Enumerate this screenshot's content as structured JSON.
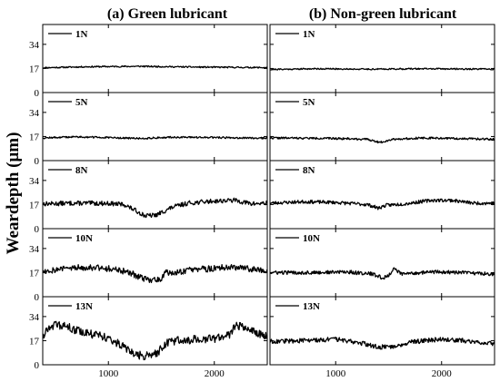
{
  "chart_data": {
    "type": "line",
    "ylabel": "Weardepth (μm)",
    "columns": [
      {
        "title": "(a) Green lubricant"
      },
      {
        "title": "(b) Non-green lubricant"
      }
    ],
    "xlim": [
      380,
      2500
    ],
    "ylim": [
      0,
      48
    ],
    "xticks": [
      1000,
      2000
    ],
    "yticks": [
      0,
      17,
      34
    ],
    "loads": [
      "1N",
      "5N",
      "8N",
      "10N",
      "13N"
    ],
    "series": [
      {
        "column": 0,
        "name": "1N",
        "noise": 0.5,
        "seed": 11,
        "points": [
          [
            380,
            17.5
          ],
          [
            800,
            18.2
          ],
          [
            1300,
            18.5
          ],
          [
            1800,
            18
          ],
          [
            2500,
            17.6
          ]
        ]
      },
      {
        "column": 0,
        "name": "5N",
        "noise": 0.6,
        "seed": 12,
        "points": [
          [
            380,
            16
          ],
          [
            700,
            16.8
          ],
          [
            1000,
            16.2
          ],
          [
            1300,
            15.6
          ],
          [
            1600,
            16.5
          ],
          [
            2000,
            16.3
          ],
          [
            2500,
            15.8
          ]
        ]
      },
      {
        "column": 0,
        "name": "8N",
        "noise": 1.6,
        "seed": 13,
        "points": [
          [
            380,
            17.5
          ],
          [
            700,
            18
          ],
          [
            1000,
            17.8
          ],
          [
            1150,
            17
          ],
          [
            1250,
            13
          ],
          [
            1350,
            9
          ],
          [
            1450,
            9.5
          ],
          [
            1600,
            15
          ],
          [
            1750,
            18
          ],
          [
            2000,
            19.5
          ],
          [
            2200,
            20
          ],
          [
            2350,
            17.5
          ],
          [
            2500,
            18
          ]
        ]
      },
      {
        "column": 0,
        "name": "10N",
        "noise": 2.3,
        "seed": 14,
        "points": [
          [
            380,
            18
          ],
          [
            600,
            20
          ],
          [
            800,
            21
          ],
          [
            1000,
            20
          ],
          [
            1200,
            17
          ],
          [
            1300,
            13.5
          ],
          [
            1400,
            11.5
          ],
          [
            1500,
            13
          ],
          [
            1550,
            18
          ],
          [
            1600,
            16
          ],
          [
            1700,
            18
          ],
          [
            1900,
            19.5
          ],
          [
            2100,
            20.5
          ],
          [
            2250,
            20
          ],
          [
            2500,
            19
          ]
        ]
      },
      {
        "column": 0,
        "name": "13N",
        "noise": 3,
        "seed": 15,
        "points": [
          [
            380,
            20
          ],
          [
            450,
            28
          ],
          [
            600,
            27
          ],
          [
            750,
            23
          ],
          [
            900,
            21
          ],
          [
            1050,
            17
          ],
          [
            1150,
            12
          ],
          [
            1250,
            7
          ],
          [
            1350,
            6
          ],
          [
            1450,
            7.5
          ],
          [
            1550,
            16
          ],
          [
            1700,
            17.5
          ],
          [
            1850,
            18
          ],
          [
            2000,
            18.5
          ],
          [
            2100,
            20
          ],
          [
            2150,
            21
          ],
          [
            2200,
            28
          ],
          [
            2300,
            27
          ],
          [
            2400,
            23
          ],
          [
            2500,
            20
          ]
        ]
      },
      {
        "column": 1,
        "name": "1N",
        "noise": 0.5,
        "seed": 21,
        "points": [
          [
            380,
            16.3
          ],
          [
            800,
            16.8
          ],
          [
            1300,
            16.5
          ],
          [
            1800,
            16.8
          ],
          [
            2500,
            16.5
          ]
        ]
      },
      {
        "column": 1,
        "name": "5N",
        "noise": 0.7,
        "seed": 22,
        "points": [
          [
            380,
            16
          ],
          [
            800,
            15.8
          ],
          [
            1100,
            15.5
          ],
          [
            1300,
            15
          ],
          [
            1420,
            12.8
          ],
          [
            1530,
            15
          ],
          [
            1800,
            16
          ],
          [
            2200,
            15.5
          ],
          [
            2500,
            15
          ]
        ]
      },
      {
        "column": 1,
        "name": "8N",
        "noise": 1.2,
        "seed": 23,
        "points": [
          [
            380,
            18
          ],
          [
            700,
            19
          ],
          [
            1000,
            18.5
          ],
          [
            1200,
            17.5
          ],
          [
            1300,
            17
          ],
          [
            1400,
            14.5
          ],
          [
            1480,
            16.5
          ],
          [
            1650,
            17.5
          ],
          [
            1900,
            20
          ],
          [
            2100,
            20
          ],
          [
            2300,
            18
          ],
          [
            2500,
            18
          ]
        ]
      },
      {
        "column": 1,
        "name": "10N",
        "noise": 1.3,
        "seed": 24,
        "points": [
          [
            380,
            17
          ],
          [
            800,
            17
          ],
          [
            1100,
            17.5
          ],
          [
            1350,
            16
          ],
          [
            1450,
            13
          ],
          [
            1500,
            15
          ],
          [
            1550,
            20
          ],
          [
            1620,
            16
          ],
          [
            1900,
            17.5
          ],
          [
            2200,
            17
          ],
          [
            2500,
            16
          ]
        ]
      },
      {
        "column": 1,
        "name": "13N",
        "noise": 1.6,
        "seed": 25,
        "points": [
          [
            380,
            16.5
          ],
          [
            700,
            17
          ],
          [
            1000,
            18
          ],
          [
            1200,
            16
          ],
          [
            1400,
            12.5
          ],
          [
            1550,
            13
          ],
          [
            1700,
            16
          ],
          [
            2000,
            18
          ],
          [
            2200,
            17
          ],
          [
            2500,
            15
          ]
        ]
      }
    ]
  }
}
